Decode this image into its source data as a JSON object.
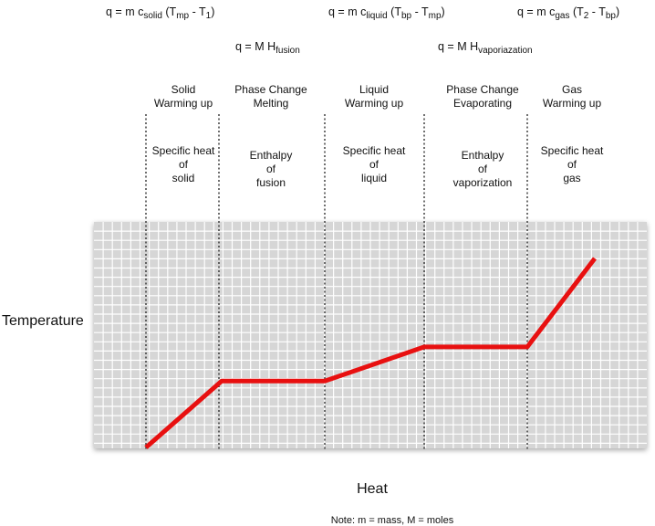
{
  "equations": {
    "solid": {
      "base": "q = m c",
      "sub1": "solid",
      "mid": " (T",
      "sub2": "mp",
      "mid2": " - T",
      "sub3": "1",
      "end": ")"
    },
    "liquid": {
      "base": "q = m c",
      "sub1": "liquid",
      "mid": " (T",
      "sub2": "bp",
      "mid2": " - T",
      "sub3": "mp",
      "end": ")"
    },
    "gas": {
      "base": "q = m c",
      "sub1": "gas",
      "mid": " (T",
      "sub2": "2",
      "mid2": " - T",
      "sub3": "bp",
      "end": ")"
    },
    "fusion": {
      "base": "q = M H",
      "sub": "fusion"
    },
    "vaporization": {
      "base": "q = M H",
      "sub": "vaporiazation"
    }
  },
  "phases": [
    {
      "title": [
        "Solid",
        "Warming up"
      ],
      "property": [
        "Specific heat",
        "of",
        "solid"
      ]
    },
    {
      "title": [
        "Phase Change",
        "Melting"
      ],
      "property": [
        "Enthalpy",
        "of",
        "fusion"
      ]
    },
    {
      "title": [
        "Liquid",
        "Warming up"
      ],
      "property": [
        "Specific heat",
        "of",
        "liquid"
      ]
    },
    {
      "title": [
        "Phase Change",
        "Evaporating"
      ],
      "property": [
        "Enthalpy",
        "of",
        "vaporization"
      ]
    },
    {
      "title": [
        "Gas",
        "Warming up"
      ],
      "property": [
        "Specific heat",
        "of",
        "gas"
      ]
    }
  ],
  "axes": {
    "y_label": "Temperature",
    "x_label": "Heat"
  },
  "note": "Note: m = mass, M = moles",
  "colors": {
    "curve": "#e81010",
    "grid_bg": "#d6d6d6",
    "grid_line": "#ffffff",
    "divider": "#222222"
  },
  "chart_data": {
    "type": "line",
    "xlabel": "Heat",
    "ylabel": "Temperature",
    "series": [
      {
        "x": [
          0,
          1,
          2,
          3,
          4,
          4.6
        ],
        "y": [
          0,
          3.3,
          3.3,
          5.0,
          5.0,
          9.4
        ]
      }
    ],
    "xlim": [
      0,
      4.6
    ],
    "ylim": [
      0,
      9.4
    ],
    "grid": true
  }
}
